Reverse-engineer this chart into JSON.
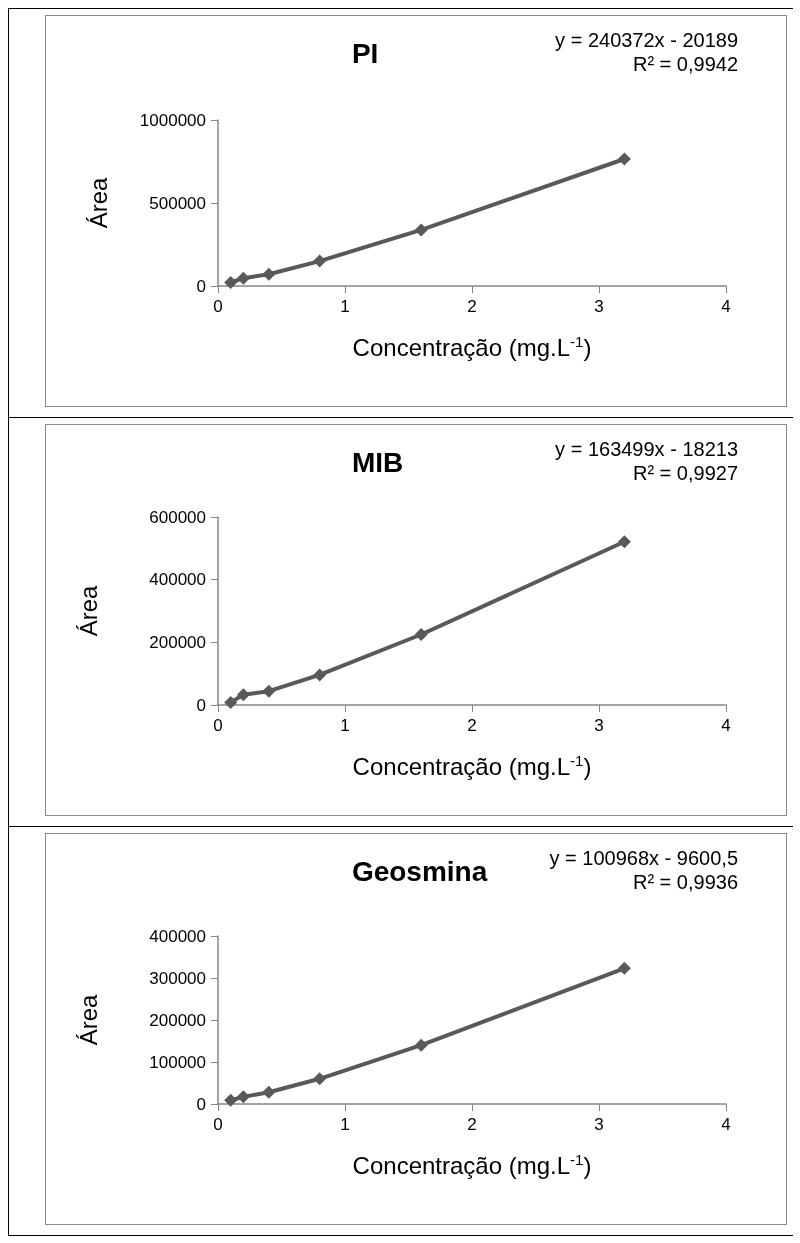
{
  "chart_data": [
    {
      "type": "line",
      "title": "PI",
      "xlabel": "Concentração (mg.L$^{-1}$)",
      "ylabel": "Área",
      "annotations": [
        "y = 240372x - 20189",
        "R² = 0,9942"
      ],
      "x": [
        0.1,
        0.2,
        0.4,
        0.8,
        1.6,
        3.2
      ],
      "series": [
        {
          "color": "#595959",
          "values": [
            21000,
            47000,
            71000,
            150000,
            338000,
            765000
          ]
        }
      ],
      "xlim": [
        0,
        4
      ],
      "xticks": [
        0,
        1,
        2,
        3,
        4
      ],
      "ylim": [
        0,
        1000000
      ],
      "yticks": [
        0,
        500000,
        1000000
      ],
      "marker": "diamond",
      "line_style": "solid"
    },
    {
      "type": "line",
      "title": "MIB",
      "xlabel": "Concentração (mg.L$^{-1}$)",
      "ylabel": "Área",
      "annotations": [
        "y = 163499x - 18213",
        "R² = 0,9927"
      ],
      "x": [
        0.1,
        0.2,
        0.4,
        0.8,
        1.6,
        3.2
      ],
      "series": [
        {
          "color": "#595959",
          "values": [
            8000,
            33000,
            44000,
            96000,
            225000,
            521000
          ]
        }
      ],
      "xlim": [
        0,
        4
      ],
      "xticks": [
        0,
        1,
        2,
        3,
        4
      ],
      "ylim": [
        0,
        600000
      ],
      "yticks": [
        0,
        200000,
        400000,
        600000
      ],
      "marker": "diamond",
      "line_style": "solid"
    },
    {
      "type": "line",
      "title": "Geosmina",
      "xlabel": "Concentração (mg.L$^{-1}$)",
      "ylabel": "Área",
      "annotations": [
        "y = 100968x - 9600,5",
        "R² = 0,9936"
      ],
      "x": [
        0.1,
        0.2,
        0.4,
        0.8,
        1.6,
        3.2
      ],
      "series": [
        {
          "color": "#595959",
          "values": [
            9000,
            17000,
            28000,
            60000,
            140000,
            323000
          ]
        }
      ],
      "xlim": [
        0,
        4
      ],
      "xticks": [
        0,
        1,
        2,
        3,
        4
      ],
      "ylim": [
        0,
        400000
      ],
      "yticks": [
        0,
        100000,
        200000,
        300000,
        400000
      ],
      "marker": "diamond",
      "line_style": "solid"
    }
  ]
}
